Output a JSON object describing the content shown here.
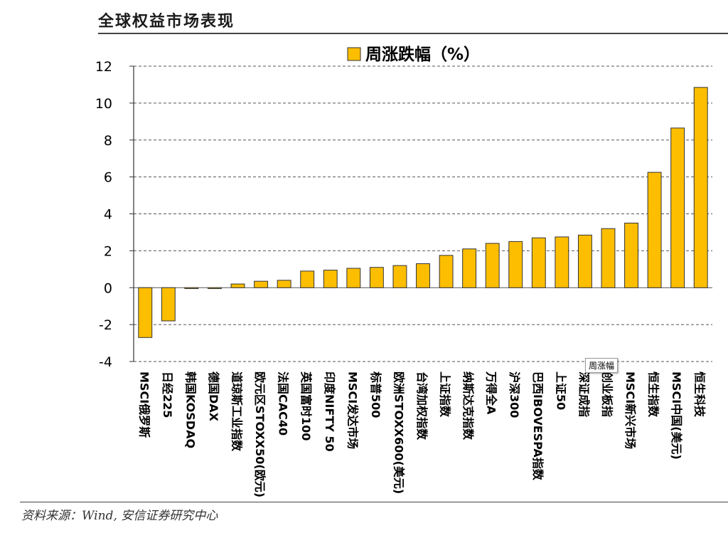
{
  "header": {
    "title": "全球权益市场表现"
  },
  "footer": {
    "source": "资料来源：Wind, 安信证券研究中心"
  },
  "tooltip": {
    "text": "周涨幅"
  },
  "chart_data": {
    "type": "bar",
    "categories": [
      "MSCI俄罗斯",
      "日经225",
      "韩国KOSDAQ",
      "德国DAX",
      "道琼斯工业指数",
      "欧元区STOXX50(欧元)",
      "法国CAC40",
      "英国富时100",
      "印度NIFTY 50",
      "MSCI发达市场",
      "标普500",
      "欧洲STOXX600(美元)",
      "台湾加权指数",
      "上证指数",
      "纳斯达克指数",
      "万得全A",
      "沪深300",
      "巴西IBOVESPA指数",
      "上证50",
      "深证成指",
      "创业板指",
      "MSCI新兴市场",
      "恒生指数",
      "MSCI中国(美元)",
      "恒生科技"
    ],
    "series": [
      {
        "name": "周涨跌幅（%）",
        "values": [
          -2.7,
          -1.8,
          -0.05,
          -0.05,
          0.2,
          0.35,
          0.4,
          0.9,
          0.95,
          1.05,
          1.1,
          1.2,
          1.3,
          1.75,
          2.1,
          2.4,
          2.5,
          2.7,
          2.75,
          2.85,
          3.2,
          3.5,
          6.25,
          8.65,
          10.85
        ]
      }
    ],
    "ylim": [
      -4,
      12
    ],
    "yticks": [
      "-4",
      "-2",
      "0",
      "2",
      "4",
      "6",
      "8",
      "10",
      "12"
    ],
    "grid": "horizontal-dashed",
    "legend_position": "top-center",
    "colors": {
      "bar_fill": "#FDBE00",
      "bar_stroke": "#333333"
    }
  }
}
